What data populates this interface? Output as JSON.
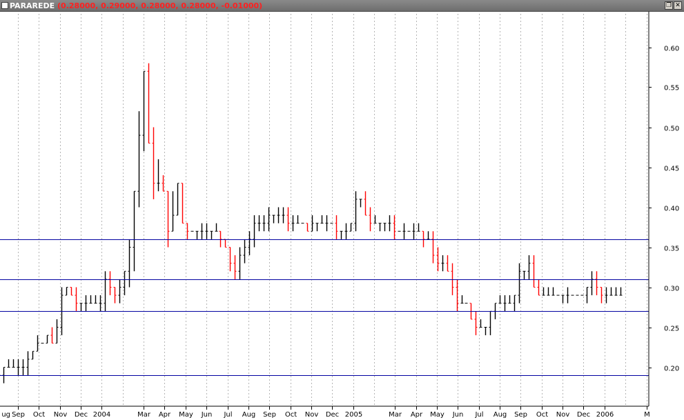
{
  "window": {
    "name": "PARAREDE",
    "ohlc": "(0.28000, 0.29000, 0.28000, 0.28000, -0.01000)",
    "restore_glyph": "❐",
    "close_glyph": "✕"
  },
  "colors": {
    "up": "#000000",
    "down": "#ff0000",
    "hline": "#0000a0",
    "grid": "#b4b4b4",
    "titlebar": "#7a7a7a"
  },
  "chart_data": {
    "type": "ohlc-bar",
    "title": "PARAREDE",
    "ylim": [
      0.15,
      0.64
    ],
    "y_ticks": [
      0.2,
      0.25,
      0.3,
      0.35,
      0.4,
      0.45,
      0.5,
      0.55,
      0.6
    ],
    "y_tick_labels": [
      "0.20",
      "0.25",
      "0.30",
      "0.35",
      "0.40",
      "0.45",
      "0.50",
      "0.55",
      "0.60"
    ],
    "x_labels": [
      "Aug",
      "Sep",
      "Oct",
      "Nov",
      "Dec",
      "2004",
      "Mar",
      "Apr",
      "May",
      "Jun",
      "Jul",
      "Aug",
      "Sep",
      "Oct",
      "Nov",
      "Dec",
      "2005",
      "Mar",
      "Apr",
      "May",
      "Jun",
      "Jul",
      "Aug",
      "Sep",
      "Oct",
      "Nov",
      "Dec",
      "2006",
      "Mar"
    ],
    "x_label_display": [
      "ug",
      "Sep",
      "Oct",
      "Nov",
      "Dec",
      "2004",
      "Mar",
      "Apr",
      "May",
      "Jun",
      "Jul",
      "Aug",
      "Sep",
      "Oct",
      "Nov",
      "Dec",
      "2005",
      "Mar",
      "Apr",
      "May",
      "Jun",
      "Jul",
      "Aug",
      "Sep",
      "Oct",
      "Nov",
      "Dec",
      "2006",
      "M"
    ],
    "x_label_months": [
      0,
      1,
      2,
      3,
      4,
      5,
      7,
      8,
      9,
      10,
      11,
      12,
      13,
      14,
      15,
      16,
      17,
      19,
      20,
      21,
      22,
      23,
      24,
      25,
      26,
      27,
      28,
      29,
      31
    ],
    "x_range_months": [
      -0.6,
      31.0
    ],
    "grid": "vertical-dotted",
    "horizontal_lines": [
      0.36,
      0.31,
      0.27,
      0.19
    ],
    "last_bar": {
      "open": 0.28,
      "high": 0.29,
      "low": 0.28,
      "close": 0.28,
      "change": -0.01
    },
    "anchors": [
      [
        -0.6,
        0.19
      ],
      [
        0.6,
        0.2
      ],
      [
        1.3,
        0.2
      ],
      [
        1.7,
        0.22
      ],
      [
        2.2,
        0.23
      ],
      [
        2.8,
        0.24
      ],
      [
        3.0,
        0.28
      ],
      [
        3.2,
        0.3
      ],
      [
        3.7,
        0.28
      ],
      [
        4.5,
        0.28
      ],
      [
        4.9,
        0.28
      ],
      [
        5.2,
        0.31
      ],
      [
        5.5,
        0.29
      ],
      [
        6.1,
        0.32
      ],
      [
        6.4,
        0.38
      ],
      [
        6.8,
        0.5
      ],
      [
        7.0,
        0.57
      ],
      [
        7.2,
        0.47
      ],
      [
        7.5,
        0.43
      ],
      [
        7.9,
        0.41
      ],
      [
        8.3,
        0.37
      ],
      [
        8.6,
        0.43
      ],
      [
        8.9,
        0.37
      ],
      [
        9.5,
        0.37
      ],
      [
        9.8,
        0.38
      ],
      [
        10.3,
        0.37
      ],
      [
        10.9,
        0.35
      ],
      [
        11.4,
        0.32
      ],
      [
        11.8,
        0.35
      ],
      [
        12.3,
        0.38
      ],
      [
        12.8,
        0.38
      ],
      [
        13.2,
        0.39
      ],
      [
        14.2,
        0.38
      ],
      [
        14.8,
        0.37
      ],
      [
        15.5,
        0.38
      ],
      [
        16.3,
        0.37
      ],
      [
        16.9,
        0.38
      ],
      [
        17.2,
        0.42
      ],
      [
        17.6,
        0.39
      ],
      [
        18.3,
        0.38
      ],
      [
        18.8,
        0.37
      ],
      [
        19.6,
        0.37
      ],
      [
        20.1,
        0.37
      ],
      [
        20.6,
        0.35
      ],
      [
        21.2,
        0.33
      ],
      [
        21.6,
        0.31
      ],
      [
        21.9,
        0.28
      ],
      [
        22.3,
        0.28
      ],
      [
        22.6,
        0.26
      ],
      [
        23.0,
        0.25
      ],
      [
        23.3,
        0.25
      ],
      [
        23.6,
        0.28
      ],
      [
        24.1,
        0.28
      ],
      [
        24.6,
        0.28
      ],
      [
        24.9,
        0.32
      ],
      [
        25.3,
        0.33
      ],
      [
        25.6,
        0.3
      ],
      [
        26.2,
        0.29
      ],
      [
        26.8,
        0.29
      ],
      [
        27.3,
        0.29
      ],
      [
        27.9,
        0.29
      ],
      [
        28.3,
        0.31
      ],
      [
        28.7,
        0.29
      ],
      [
        29.3,
        0.29
      ],
      [
        29.7,
        0.29
      ],
      [
        29.98,
        0.28
      ]
    ]
  }
}
